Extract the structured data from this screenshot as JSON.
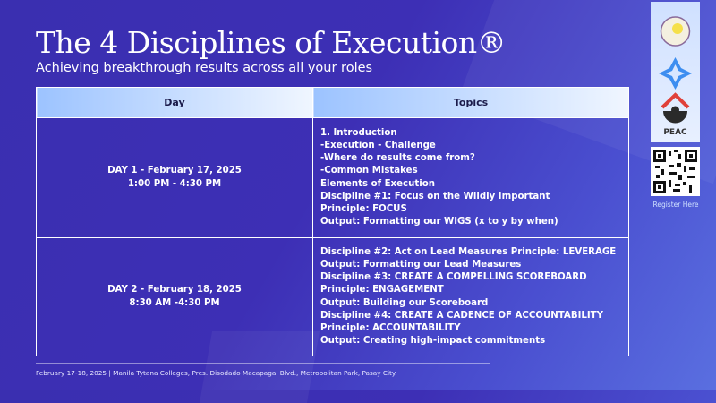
{
  "header": {
    "title": "The 4 Disciplines of Execution®",
    "subtitle": "Achieving breakthrough results across all your roles"
  },
  "table": {
    "columns": [
      "Day",
      "Topics"
    ],
    "rows": [
      {
        "day": [
          "DAY 1 - February 17, 2025",
          "1:00 PM - 4:30 PM"
        ],
        "topics": [
          "1. Introduction",
          "-Execution - Challenge",
          "-Where do results come from?",
          "-Common Mistakes",
          "Elements of Execution",
          "Discipline #1: Focus on the Wildly Important",
          "Principle: FOCUS",
          "Output: Formatting our WIGS (x to y by when)"
        ]
      },
      {
        "day": [
          "DAY 2 - February 18, 2025",
          "8:30 AM -4:30 PM"
        ],
        "topics": [
          "Discipline #2: Act on Lead Measures Principle: LEVERAGE",
          "Output: Formatting our Lead Measures",
          "Discipline #3: CREATE A COMPELLING SCOREBOARD",
          "Principle: ENGAGEMENT",
          "Output: Building our Scoreboard",
          "Discipline #4: CREATE A CADENCE OF ACCOUNTABILITY",
          "Principle: ACCOUNTABILITY",
          "Output: Creating high-impact commitments"
        ]
      }
    ]
  },
  "footer": "February 17-18, 2025 | Manila Tytana Colleges, Pres. Disodado Macapagal Blvd., Metropolitan Park, Pasay City.",
  "sidebar": {
    "logo_text": "PEAC",
    "register_label": "Register Here"
  }
}
